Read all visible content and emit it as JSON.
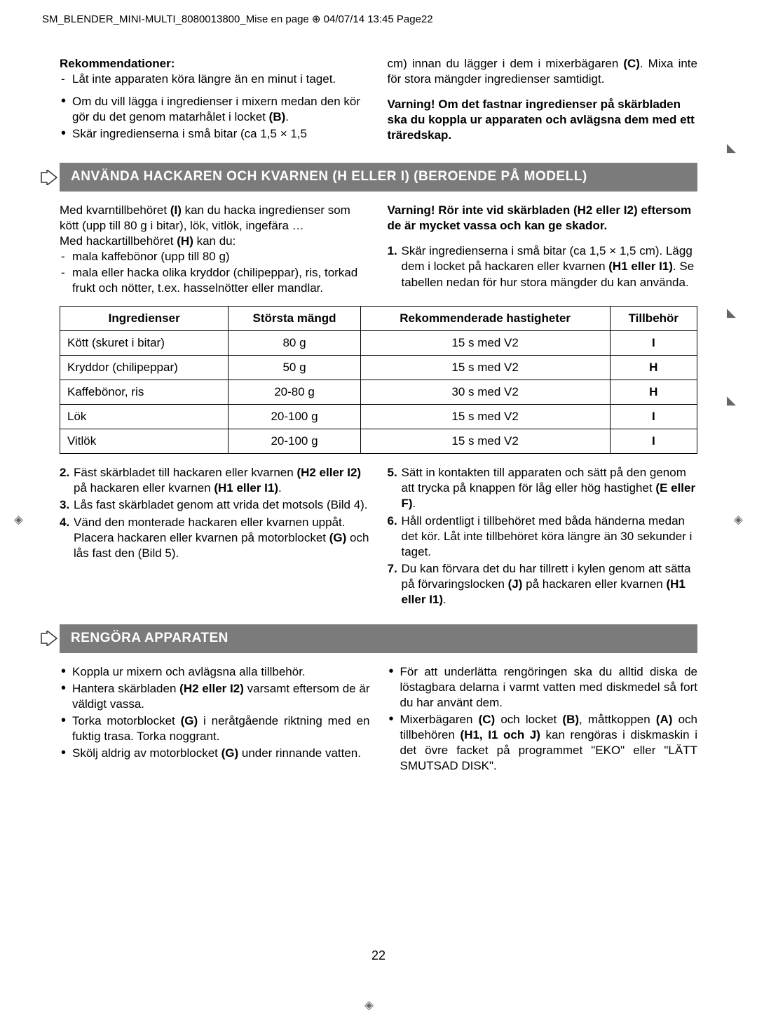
{
  "page_header": "SM_BLENDER_MINI-MULTI_8080013800_Mise en page ⊕ 04/07/14 13:45 Page22",
  "page_number": "22",
  "top": {
    "left": {
      "heading": "Rekommendationer:",
      "dash1": "Låt inte apparaten köra längre än en minut i taget.",
      "b1_pre": "Om du vill lägga i ingredienser i mixern medan den kör gör du det genom matarhålet i locket ",
      "b1_bold": "(B)",
      "b1_post": ".",
      "b2": "Skär ingredienserna i små bitar (ca 1,5 × 1,5"
    },
    "right": {
      "cont_pre": "cm) innan du lägger i dem i mixerbägaren ",
      "cont_bold": "(C)",
      "cont_post": ". Mixa inte för stora mängder ingredienser samtidigt.",
      "warn": "Varning! Om det fastnar ingredienser på skär­bladen ska du koppla ur apparaten och avlägsna dem med ett träredskap."
    }
  },
  "sec1": {
    "title": "ANVÄNDA HACKAREN OCH KVARNEN (H ELLER I) (BEROENDE PÅ MODELL)",
    "left": {
      "p1a": "Med kvarntillbehöret ",
      "p1b": "(I)",
      "p1c": " kan du hacka ingredi­enser som kött (upp till 80 g i bitar), lök, vitlök, in­gefära …",
      "p2a": "Med hackartillbehöret ",
      "p2b": "(H)",
      "p2c": " kan du:",
      "d1": "mala kaffebönor (upp till 80 g)",
      "d2": "mala eller hacka olika kryddor (chilipeppar), ris, torkad frukt och nötter, t.ex. hasselnötter eller mandlar."
    },
    "right": {
      "warn": "Varning! Rör inte vid skärbladen (H2 eller I2) eftersom de är mycket vassa och kan ge skador.",
      "n1a": "Skär ingredienserna i små bitar (ca 1,5 × 1,5 cm). Lägg dem i locket på hackaren eller kvarnen ",
      "n1b": "(H1 eller I1)",
      "n1c": ". Se tabellen nedan för hur stora mängder du kan använda."
    }
  },
  "table": {
    "h1": "Ingredienser",
    "h2": "Största mängd",
    "h3": "Rekommenderade hastigheter",
    "h4": "Tillbehör",
    "rows": [
      {
        "c1": "Kött (skuret i bitar)",
        "c2": "80 g",
        "c3": "15 s med V2",
        "c4": "I"
      },
      {
        "c1": "Kryddor (chilipeppar)",
        "c2": "50 g",
        "c3": "15 s med V2",
        "c4": "H"
      },
      {
        "c1": "Kaffebönor, ris",
        "c2": "20-80 g",
        "c3": "30 s med V2",
        "c4": "H"
      },
      {
        "c1": "Lök",
        "c2": "20-100 g",
        "c3": "15 s med V2",
        "c4": "I"
      },
      {
        "c1": "Vitlök",
        "c2": "20-100 g",
        "c3": "15 s med V2",
        "c4": "I"
      }
    ]
  },
  "steps": {
    "left": {
      "s2a": "Fäst skärbladet till hackaren eller kvarnen ",
      "s2b": "(H2 eller I2)",
      "s2c": " på hackaren eller kvarnen ",
      "s2d": "(H1 eller I1)",
      "s2e": ".",
      "s3": "Lås fast skärbladet genom att vrida det motsols (Bild 4).",
      "s4a": "Vänd den monterade hackaren eller kvarnen uppåt. Placera hackaren eller kvarnen på motorblocket ",
      "s4b": "(G)",
      "s4c": " och lås fast den (Bild 5)."
    },
    "right": {
      "s5a": "Sätt in kontakten till apparaten och sätt på den genom att trycka på knappen för låg eller hög hastighet ",
      "s5b": "(E eller F)",
      "s5c": ".",
      "s6": "Håll ordentligt i tillbehöret med båda händerna medan det kör. Låt inte tillbehöret köra längre än 30 sekunder i taget.",
      "s7a": "Du kan förvara det du har tillrett i kylen genom att sätta på förvaringslocken ",
      "s7b": "(J)",
      "s7c": " på hackaren eller kvarnen ",
      "s7d": "(H1 eller I1)",
      "s7e": "."
    }
  },
  "sec2": {
    "title": "RENGÖRA APPARATEN",
    "left": {
      "b1": "Koppla ur mixern och avlägsna alla tillbehör.",
      "b2a": "Hantera skärbladen ",
      "b2b": "(H2 eller I2)",
      "b2c": " varsamt eftersom de är väldigt vassa.",
      "b3a": "Torka motorblocket ",
      "b3b": "(G)",
      "b3c": " i neråtgående riktning med en fuktig trasa. Torka noggrant.",
      "b4a": "Skölj aldrig av motorblocket ",
      "b4b": "(G)",
      "b4c": " under rinnande vatten."
    },
    "right": {
      "b1": "För att underlätta rengöringen ska du alltid diska de löstagbara delarna i varmt vatten med diskmedel så fort du har använt dem.",
      "b2a": "Mixerbägaren ",
      "b2b": "(C)",
      "b2c": " och locket ",
      "b2d": "(B)",
      "b2e": ", måttkoppen ",
      "b2f": "(A)",
      "b2g": " och tillbehören ",
      "b2h": "(H1, I1 och J)",
      "b2i": " kan rengöras i diskmaskin i det övre facket på programmet \"EKO\" eller \"LÄTT SMUTSAD DISK\"."
    }
  }
}
